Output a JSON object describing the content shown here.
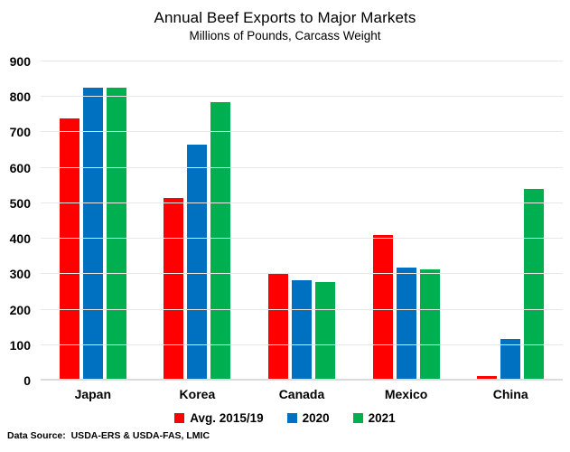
{
  "chart_data": {
    "type": "bar",
    "title": "Annual Beef Exports to Major Markets",
    "subtitle": "Millions of Pounds, Carcass Weight",
    "categories": [
      "Japan",
      "Korea",
      "Canada",
      "Mexico",
      "China"
    ],
    "series": [
      {
        "name": "Avg. 2015/19",
        "color": "#FF0000",
        "values": [
          740,
          514,
          301,
          410,
          13
        ]
      },
      {
        "name": "2020",
        "color": "#0070C0",
        "values": [
          826,
          666,
          284,
          319,
          118
        ]
      },
      {
        "name": "2021",
        "color": "#00B050",
        "values": [
          826,
          786,
          278,
          314,
          540
        ]
      }
    ],
    "xlabel": "",
    "ylabel": "",
    "ylim": [
      0,
      900
    ],
    "yticks": [
      0,
      100,
      200,
      300,
      400,
      500,
      600,
      700,
      800,
      900
    ],
    "grid": true,
    "legend_position": "bottom",
    "footer": "Data Source:  USDA-ERS & USDA-FAS, LMIC"
  }
}
